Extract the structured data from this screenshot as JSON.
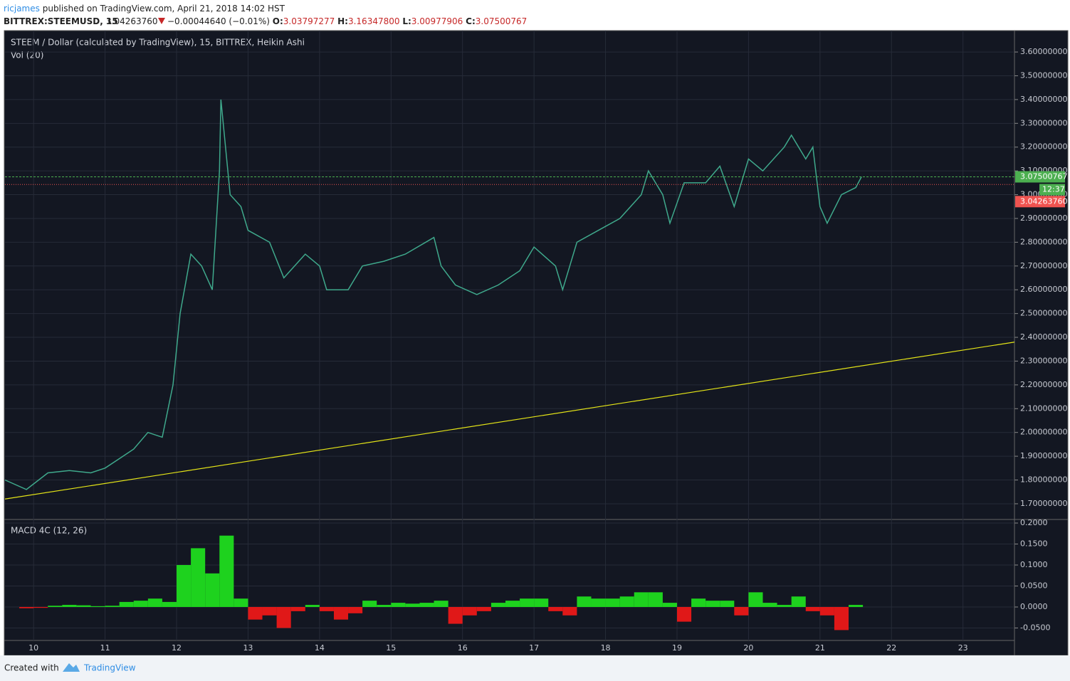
{
  "header": {
    "author": "ricjames",
    "published": "published on TradingView.com, April 21, 2018 14:02 HST",
    "symbol": "BITTREX:STEEMUSD, 15",
    "last": "3.04263760",
    "change": "−0.00044640 (−0.01%)",
    "open_label": "O:",
    "open": "3.03797277",
    "high_label": "H:",
    "high": "3.16347800",
    "low_label": "L:",
    "low": "3.00977906",
    "close_label": "C:",
    "close": "3.07500767"
  },
  "footer": {
    "created": "Created with",
    "brand": "TradingView"
  },
  "chart_data": [
    {
      "type": "line",
      "title": "STEEM / Dollar (calculated by TradingView), 15, BITTREX, Heikin Ashi",
      "subtitle": "Vol (20)",
      "x": [
        9.6,
        9.9,
        10.2,
        10.5,
        10.8,
        11.0,
        11.2,
        11.4,
        11.6,
        11.8,
        11.95,
        12.05,
        12.2,
        12.35,
        12.5,
        12.6,
        12.62,
        12.75,
        12.9,
        13.0,
        13.3,
        13.5,
        13.8,
        14.0,
        14.1,
        14.4,
        14.6,
        14.9,
        15.2,
        15.6,
        15.7,
        15.9,
        16.2,
        16.5,
        16.8,
        17.0,
        17.3,
        17.4,
        17.6,
        17.9,
        18.2,
        18.5,
        18.6,
        18.8,
        18.9,
        19.1,
        19.4,
        19.6,
        19.8,
        20.0,
        20.2,
        20.5,
        20.6,
        20.8,
        20.9,
        21.0,
        21.1,
        21.3,
        21.5,
        21.58
      ],
      "series": [
        {
          "color": "#3fa98c",
          "values": [
            1.8,
            1.76,
            1.83,
            1.84,
            1.83,
            1.85,
            1.89,
            1.93,
            2.0,
            1.98,
            2.2,
            2.5,
            2.75,
            2.7,
            2.6,
            3.1,
            3.4,
            3.0,
            2.95,
            2.85,
            2.8,
            2.65,
            2.75,
            2.7,
            2.6,
            2.6,
            2.7,
            2.72,
            2.75,
            2.82,
            2.7,
            2.62,
            2.58,
            2.62,
            2.68,
            2.78,
            2.7,
            2.6,
            2.8,
            2.85,
            2.9,
            3.0,
            3.1,
            3.0,
            2.88,
            3.05,
            3.05,
            3.12,
            2.95,
            3.15,
            3.1,
            3.2,
            3.25,
            3.15,
            3.2,
            2.95,
            2.88,
            3.0,
            3.03,
            3.075
          ]
        }
      ],
      "trendline": {
        "x": [
          9.6,
          23.72
        ],
        "y": [
          1.72,
          2.38
        ],
        "color": "#e5e517"
      },
      "price_lines": [
        {
          "value": 3.07500767,
          "label": "3.07500767",
          "color": "#4caf50"
        },
        {
          "value": 3.0426376,
          "label": "3.04263760",
          "color": "#ef5350"
        }
      ],
      "countdown": "12:37",
      "xlim": [
        9.6,
        23.72
      ],
      "xticks": [
        10,
        11,
        12,
        13,
        14,
        15,
        16,
        17,
        18,
        19,
        20,
        21,
        22,
        23
      ],
      "ylim": [
        1.634,
        3.69
      ],
      "yticks": [
        {
          "value": 1.7,
          "label": "1.70000000"
        },
        {
          "value": 1.8,
          "label": "1.80000000"
        },
        {
          "value": 1.9,
          "label": "1.90000000"
        },
        {
          "value": 2.0,
          "label": "2.00000000"
        },
        {
          "value": 2.1,
          "label": "2.10000000"
        },
        {
          "value": 2.2,
          "label": "2.20000000"
        },
        {
          "value": 2.3,
          "label": "2.30000000"
        },
        {
          "value": 2.4,
          "label": "2.40000000"
        },
        {
          "value": 2.5,
          "label": "2.50000000"
        },
        {
          "value": 2.6,
          "label": "2.60000000"
        },
        {
          "value": 2.7,
          "label": "2.70000000"
        },
        {
          "value": 2.8,
          "label": "2.80000000"
        },
        {
          "value": 2.9,
          "label": "2.90000000"
        },
        {
          "value": 3.0,
          "label": "3.00000000"
        },
        {
          "value": 3.1,
          "label": "3.10000000"
        },
        {
          "value": 3.2,
          "label": "3.20000000"
        },
        {
          "value": 3.3,
          "label": "3.30000000"
        },
        {
          "value": 3.4,
          "label": "3.40000000"
        },
        {
          "value": 3.5,
          "label": "3.50000000"
        },
        {
          "value": 3.6,
          "label": "3.60000000"
        }
      ],
      "grid": true
    },
    {
      "type": "bar",
      "title": "MACD 4C (12, 26)",
      "x": [
        9.6,
        9.8,
        10.0,
        10.2,
        10.4,
        10.6,
        10.8,
        11.0,
        11.2,
        11.4,
        11.6,
        11.8,
        12.0,
        12.2,
        12.4,
        12.6,
        12.8,
        13.0,
        13.2,
        13.4,
        13.6,
        13.8,
        14.0,
        14.2,
        14.4,
        14.6,
        14.8,
        15.0,
        15.2,
        15.4,
        15.6,
        15.8,
        16.0,
        16.2,
        16.4,
        16.6,
        16.8,
        17.0,
        17.2,
        17.4,
        17.6,
        17.8,
        18.0,
        18.2,
        18.4,
        18.6,
        18.8,
        19.0,
        19.2,
        19.4,
        19.6,
        19.8,
        20.0,
        20.2,
        20.4,
        20.6,
        20.8,
        21.0,
        21.2,
        21.4
      ],
      "values": [
        0.0,
        -0.003,
        -0.002,
        0.003,
        0.005,
        0.004,
        0.002,
        0.003,
        0.012,
        0.015,
        0.02,
        0.012,
        0.1,
        0.14,
        0.08,
        0.17,
        0.02,
        -0.03,
        -0.02,
        -0.05,
        -0.01,
        0.005,
        -0.01,
        -0.03,
        -0.015,
        0.015,
        0.005,
        0.01,
        0.008,
        0.01,
        0.015,
        -0.04,
        -0.02,
        -0.01,
        0.01,
        0.015,
        0.02,
        0.02,
        -0.01,
        -0.02,
        0.025,
        0.02,
        0.02,
        0.025,
        0.035,
        0.035,
        0.01,
        -0.035,
        0.02,
        0.015,
        0.015,
        -0.02,
        0.035,
        0.01,
        0.005,
        0.025,
        -0.01,
        -0.02,
        -0.055,
        0.005
      ],
      "positive_color": "#1ed21e",
      "negative_color": "#e01818",
      "xlim": [
        9.6,
        23.72
      ],
      "ylim": [
        -0.0797,
        0.2085
      ],
      "yticks": [
        {
          "value": 0.2,
          "label": "0.2000"
        },
        {
          "value": 0.15,
          "label": "0.1500"
        },
        {
          "value": 0.1,
          "label": "0.1000"
        },
        {
          "value": 0.05,
          "label": "0.0500"
        },
        {
          "value": 0,
          "label": "0.0000"
        },
        {
          "value": -0.05,
          "label": "-0.0500"
        }
      ],
      "grid": true
    }
  ]
}
